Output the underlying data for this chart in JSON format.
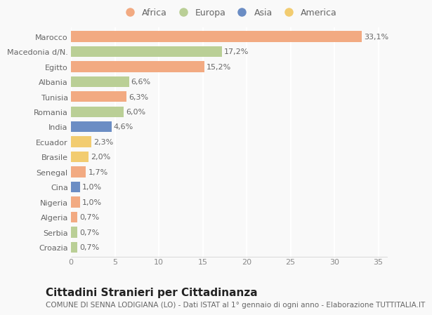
{
  "countries": [
    "Marocco",
    "Macedonia d/N.",
    "Egitto",
    "Albania",
    "Tunisia",
    "Romania",
    "India",
    "Ecuador",
    "Brasile",
    "Senegal",
    "Cina",
    "Nigeria",
    "Algeria",
    "Serbia",
    "Croazia"
  ],
  "values": [
    33.1,
    17.2,
    15.2,
    6.6,
    6.3,
    6.0,
    4.6,
    2.3,
    2.0,
    1.7,
    1.0,
    1.0,
    0.7,
    0.7,
    0.7
  ],
  "labels": [
    "33,1%",
    "17,2%",
    "15,2%",
    "6,6%",
    "6,3%",
    "6,0%",
    "4,6%",
    "2,3%",
    "2,0%",
    "1,7%",
    "1,0%",
    "1,0%",
    "0,7%",
    "0,7%",
    "0,7%"
  ],
  "continents": [
    "Africa",
    "Europa",
    "Africa",
    "Europa",
    "Africa",
    "Europa",
    "Asia",
    "America",
    "America",
    "Africa",
    "Asia",
    "Africa",
    "Africa",
    "Europa",
    "Europa"
  ],
  "continent_colors": {
    "Africa": "#F2AA82",
    "Europa": "#BACF96",
    "Asia": "#6B8DC4",
    "America": "#F2CC70"
  },
  "legend_order": [
    "Africa",
    "Europa",
    "Asia",
    "America"
  ],
  "title": "Cittadini Stranieri per Cittadinanza",
  "subtitle": "COMUNE DI SENNA LODIGIANA (LO) - Dati ISTAT al 1° gennaio di ogni anno - Elaborazione TUTTITALIA.IT",
  "xlim": [
    0,
    36
  ],
  "xticks": [
    0,
    5,
    10,
    15,
    20,
    25,
    30,
    35
  ],
  "bg_color": "#f9f9f9",
  "grid_color": "#e8e8e8",
  "bar_height": 0.72,
  "title_fontsize": 11,
  "subtitle_fontsize": 7.5,
  "label_fontsize": 8,
  "tick_fontsize": 8,
  "legend_fontsize": 9
}
